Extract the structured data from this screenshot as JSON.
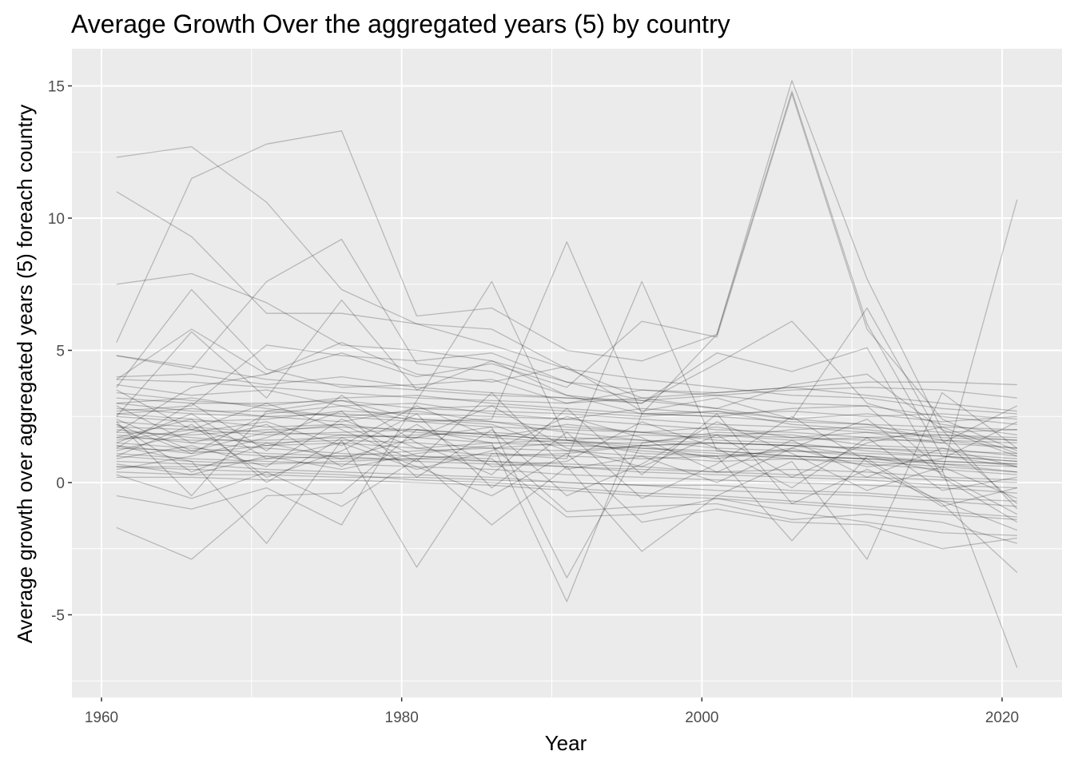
{
  "chart_data": {
    "type": "line",
    "title": "Average Growth Over the aggregated years (5) by country",
    "xlabel": "Year",
    "ylabel": "Average growth over aggregated years (5) foreach country",
    "x": [
      1961,
      1966,
      1971,
      1976,
      1981,
      1986,
      1991,
      1996,
      2001,
      2006,
      2011,
      2016,
      2021
    ],
    "xlim": [
      1960,
      2020
    ],
    "ylim": [
      -7.5,
      15.5
    ],
    "x_ticks": [
      "1960",
      "1980",
      "2000",
      "2020"
    ],
    "y_ticks": [
      "-5",
      "0",
      "5",
      "10",
      "15"
    ],
    "x_tick_values": [
      1960,
      1980,
      2000,
      2020
    ],
    "y_tick_values": [
      -5,
      0,
      5,
      10,
      15
    ],
    "grid": true,
    "legend": "none",
    "line_color": "#000000",
    "line_alpha": 0.22,
    "panel_color": "#ebebeb",
    "gridline_color": "#ffffff",
    "series": [
      {
        "values": [
          12.3,
          12.7,
          10.6,
          7.3,
          6.0,
          5.2,
          4.3,
          3.9,
          3.6,
          3.3,
          3.2,
          2.8,
          2.6
        ]
      },
      {
        "values": [
          11.0,
          9.3,
          6.4,
          6.4,
          6.0,
          5.8,
          4.3,
          3.2,
          2.8,
          2.4,
          2.2,
          1.6,
          1.3
        ]
      },
      {
        "values": [
          7.5,
          7.9,
          6.8,
          5.2,
          5.0,
          4.6,
          3.8,
          3.5,
          3.3,
          3.0,
          2.9,
          2.5,
          2.2
        ]
      },
      {
        "values": [
          5.3,
          11.5,
          12.8,
          13.3,
          6.3,
          6.6,
          5.0,
          4.6,
          5.6,
          14.8,
          6.0,
          1.0,
          0.6
        ]
      },
      {
        "values": [
          4.8,
          4.3,
          7.6,
          9.2,
          4.5,
          4.2,
          3.3,
          2.6,
          5.6,
          15.2,
          7.7,
          2.0,
          -1.0
        ]
      },
      {
        "values": [
          3.9,
          5.8,
          4.1,
          4.9,
          4.0,
          4.5,
          3.6,
          6.1,
          5.5,
          14.7,
          5.8,
          2.4,
          1.2
        ]
      },
      {
        "values": [
          3.6,
          7.3,
          4.3,
          3.6,
          3.7,
          3.9,
          3.0,
          3.5,
          3.4,
          3.6,
          3.3,
          3.0,
          2.7
        ]
      },
      {
        "values": [
          2.3,
          -0.5,
          2.7,
          3.1,
          2.4,
          2.2,
          1.2,
          1.4,
          1.5,
          1.4,
          1.0,
          0.4,
          10.7
        ]
      },
      {
        "values": [
          2.2,
          1.1,
          2.6,
          2.9,
          2.3,
          2.4,
          9.1,
          2.6,
          2.5,
          2.8,
          2.9,
          0.5,
          -7.0
        ]
      },
      {
        "values": [
          1.9,
          1.8,
          2.0,
          2.1,
          2.0,
          1.5,
          -4.5,
          2.6,
          2.7,
          2.2,
          2.0,
          1.7,
          1.6
        ]
      },
      {
        "values": [
          1.6,
          2.0,
          1.4,
          1.8,
          1.7,
          2.1,
          -3.6,
          1.5,
          1.9,
          1.8,
          1.4,
          1.3,
          1.0
        ]
      },
      {
        "values": [
          -1.7,
          -2.9,
          -0.5,
          -0.4,
          2.0,
          1.8,
          1.6,
          1.3,
          1.1,
          0.9,
          0.7,
          0.5,
          0.3
        ]
      },
      {
        "values": [
          -0.5,
          -1.0,
          -0.2,
          -1.6,
          3.1,
          7.6,
          1.6,
          1.1,
          1.0,
          -2.2,
          1.0,
          0.7,
          0.4
        ]
      },
      {
        "values": [
          1.4,
          0.8,
          -2.3,
          1.6,
          -3.2,
          1.1,
          0.9,
          7.6,
          1.2,
          1.0,
          0.9,
          -0.8,
          -3.4
        ]
      },
      {
        "values": [
          0.3,
          -0.6,
          0.4,
          -0.9,
          0.9,
          -1.6,
          0.6,
          -2.6,
          -0.5,
          0.8,
          -2.9,
          3.4,
          1.3
        ]
      },
      {
        "values": [
          3.0,
          2.7,
          2.7,
          2.5,
          2.7,
          2.3,
          1.9,
          1.6,
          1.3,
          1.2,
          1.0,
          0.8,
          0.7
        ]
      },
      {
        "values": [
          2.8,
          2.6,
          2.5,
          2.6,
          2.4,
          2.3,
          2.1,
          1.9,
          1.6,
          1.5,
          1.2,
          1.0,
          0.8
        ]
      },
      {
        "values": [
          2.6,
          2.4,
          2.1,
          2.2,
          1.9,
          1.7,
          1.5,
          1.2,
          1.0,
          1.0,
          0.9,
          0.7,
          0.6
        ]
      },
      {
        "values": [
          2.5,
          2.3,
          2.4,
          2.7,
          2.6,
          2.5,
          2.4,
          2.2,
          2.0,
          1.9,
          1.7,
          1.5,
          1.3
        ]
      },
      {
        "values": [
          2.3,
          2.1,
          1.9,
          1.8,
          1.7,
          1.5,
          1.4,
          1.3,
          1.2,
          1.0,
          0.9,
          0.8,
          0.7
        ]
      },
      {
        "values": [
          2.1,
          2.0,
          1.8,
          1.9,
          2.0,
          1.8,
          1.6,
          1.4,
          1.5,
          1.4,
          1.3,
          1.1,
          0.9
        ]
      },
      {
        "values": [
          2.0,
          1.7,
          1.5,
          1.6,
          1.5,
          1.3,
          1.2,
          1.0,
          0.8,
          0.9,
          0.8,
          0.6,
          0.4
        ]
      },
      {
        "values": [
          1.8,
          1.5,
          1.3,
          1.1,
          1.0,
          0.8,
          0.6,
          0.5,
          0.4,
          0.3,
          0.2,
          0.1,
          0.0
        ]
      },
      {
        "values": [
          1.7,
          1.6,
          1.6,
          1.7,
          1.8,
          1.9,
          1.7,
          1.6,
          1.5,
          1.4,
          1.3,
          1.2,
          1.1
        ]
      },
      {
        "values": [
          1.5,
          1.3,
          1.1,
          1.0,
          0.8,
          0.7,
          0.6,
          0.4,
          0.3,
          0.2,
          0.1,
          -0.1,
          -0.2
        ]
      },
      {
        "values": [
          1.3,
          1.2,
          1.0,
          0.9,
          0.9,
          0.8,
          0.7,
          0.6,
          0.4,
          0.5,
          0.4,
          0.2,
          0.1
        ]
      },
      {
        "values": [
          1.1,
          0.9,
          0.8,
          0.7,
          0.6,
          0.5,
          0.3,
          0.2,
          0.1,
          0.0,
          -0.1,
          -0.2,
          -0.4
        ]
      },
      {
        "values": [
          1.0,
          0.8,
          0.7,
          0.8,
          0.9,
          1.1,
          1.0,
          0.9,
          1.0,
          1.2,
          1.1,
          1.0,
          0.8
        ]
      },
      {
        "values": [
          0.8,
          0.7,
          0.5,
          0.4,
          0.3,
          0.2,
          0.0,
          -0.1,
          -0.3,
          -0.4,
          -0.5,
          -0.7,
          -0.9
        ]
      },
      {
        "values": [
          0.6,
          0.5,
          0.4,
          0.3,
          0.1,
          0.0,
          -0.2,
          -0.4,
          -0.5,
          -0.7,
          -0.9,
          -1.1,
          -1.3
        ]
      },
      {
        "values": [
          0.4,
          0.3,
          0.3,
          0.2,
          0.2,
          0.1,
          0.0,
          -0.1,
          -0.1,
          -0.3,
          -0.4,
          -0.6,
          -0.7
        ]
      },
      {
        "values": [
          0.2,
          0.2,
          0.1,
          0.1,
          0.0,
          -0.1,
          -0.3,
          -0.5,
          -0.6,
          -0.8,
          -1.0,
          -1.2,
          -1.4
        ]
      },
      {
        "values": [
          3.4,
          3.1,
          2.9,
          3.2,
          3.3,
          3.0,
          2.8,
          2.6,
          2.5,
          2.3,
          2.2,
          2.1,
          2.0
        ]
      },
      {
        "values": [
          3.2,
          3.0,
          3.0,
          3.1,
          2.8,
          2.7,
          2.6,
          2.4,
          2.2,
          2.1,
          1.9,
          1.8,
          1.6
        ]
      },
      {
        "values": [
          3.0,
          3.2,
          2.8,
          2.5,
          2.3,
          2.1,
          2.0,
          1.9,
          1.8,
          1.7,
          1.6,
          1.6,
          1.5
        ]
      },
      {
        "values": [
          3.9,
          3.8,
          3.6,
          3.4,
          3.2,
          3.1,
          3.0,
          3.2,
          3.4,
          3.6,
          3.8,
          3.8,
          3.7
        ]
      },
      {
        "values": [
          4.8,
          4.4,
          3.9,
          3.7,
          3.5,
          3.3,
          3.2,
          3.1,
          3.3,
          3.5,
          3.6,
          3.5,
          3.2
        ]
      },
      {
        "values": [
          4.0,
          4.1,
          3.7,
          4.0,
          3.6,
          3.4,
          3.2,
          3.0,
          4.5,
          6.1,
          3.0,
          2.2,
          1.8
        ]
      },
      {
        "values": [
          2.7,
          2.9,
          5.2,
          4.8,
          4.6,
          4.9,
          3.8,
          3.1,
          2.8,
          3.7,
          4.1,
          2.0,
          1.0
        ]
      },
      {
        "values": [
          1.9,
          3.6,
          4.1,
          5.3,
          4.1,
          3.8,
          4.4,
          2.7,
          3.2,
          2.4,
          6.6,
          1.6,
          -0.8
        ]
      },
      {
        "values": [
          2.5,
          5.7,
          3.2,
          6.9,
          3.5,
          4.6,
          3.3,
          3.0,
          4.9,
          4.2,
          5.1,
          0.2,
          -1.5
        ]
      },
      {
        "values": [
          1.2,
          1.9,
          2.3,
          1.4,
          2.9,
          1.7,
          2.2,
          1.9,
          2.1,
          1.7,
          1.9,
          1.5,
          2.9
        ]
      },
      {
        "values": [
          0.9,
          1.4,
          0.6,
          2.4,
          1.3,
          1.0,
          1.1,
          1.4,
          0.9,
          1.3,
          0.6,
          0.9,
          2.3
        ]
      },
      {
        "values": [
          2.2,
          0.4,
          1.5,
          0.9,
          1.7,
          2.9,
          1.3,
          0.6,
          1.8,
          0.2,
          1.5,
          2.1,
          1.1
        ]
      },
      {
        "values": [
          1.5,
          2.6,
          0.9,
          1.5,
          0.5,
          1.2,
          2.5,
          1.7,
          0.4,
          1.6,
          0.2,
          1.3,
          0.6
        ]
      },
      {
        "values": [
          2.9,
          1.5,
          2.2,
          0.6,
          2.2,
          0.6,
          0.8,
          2.3,
          1.3,
          -0.2,
          1.7,
          -0.3,
          0.2
        ]
      },
      {
        "values": [
          0.5,
          1.0,
          1.7,
          2.7,
          0.2,
          2.0,
          -0.5,
          0.7,
          2.3,
          1.1,
          -0.3,
          0.6,
          -0.6
        ]
      },
      {
        "values": [
          1.0,
          2.2,
          0.2,
          1.2,
          2.6,
          -0.2,
          1.9,
          -0.6,
          0.7,
          2.5,
          0.8,
          -0.9,
          -0.2
        ]
      },
      {
        "values": [
          3.5,
          2.0,
          3.0,
          2.0,
          0.8,
          3.4,
          0.5,
          1.0,
          0.0,
          1.3,
          2.4,
          0.3,
          -1.2
        ]
      },
      {
        "values": [
          1.3,
          3.0,
          1.2,
          3.3,
          1.5,
          0.3,
          2.8,
          0.3,
          2.6,
          -0.8,
          0.5,
          -0.7,
          -1.8
        ]
      },
      {
        "values": [
          0.7,
          0.3,
          1.0,
          0.5,
          1.1,
          1.4,
          -1.1,
          -0.9,
          -0.8,
          -1.4,
          -1.2,
          -1.5,
          -2.3
        ]
      },
      {
        "values": [
          2.4,
          1.2,
          1.9,
          2.2,
          1.0,
          0.9,
          -1.3,
          -1.2,
          -0.6,
          -1.1,
          -1.5,
          -1.9,
          -2.0
        ]
      },
      {
        "values": [
          1.7,
          2.4,
          0.0,
          1.7,
          0.6,
          -0.5,
          1.1,
          -1.5,
          -1.0,
          -1.5,
          -1.6,
          -2.5,
          -2.1
        ]
      },
      {
        "values": [
          3.7,
          3.3,
          3.5,
          2.9,
          3.0,
          2.6,
          2.4,
          2.8,
          2.6,
          2.7,
          2.5,
          2.6,
          2.4
        ]
      },
      {
        "values": [
          2.6,
          2.8,
          2.5,
          2.3,
          2.8,
          2.9,
          2.7,
          2.5,
          2.7,
          2.4,
          2.6,
          2.3,
          2.5
        ]
      },
      {
        "values": [
          1.4,
          1.1,
          1.4,
          1.5,
          1.3,
          1.5,
          1.6,
          1.8,
          1.7,
          2.0,
          2.1,
          1.9,
          2.0
        ]
      },
      {
        "values": [
          0.6,
          0.6,
          0.9,
          1.0,
          1.2,
          1.3,
          1.5,
          1.5,
          1.8,
          1.6,
          1.7,
          1.8,
          1.7
        ]
      }
    ]
  }
}
